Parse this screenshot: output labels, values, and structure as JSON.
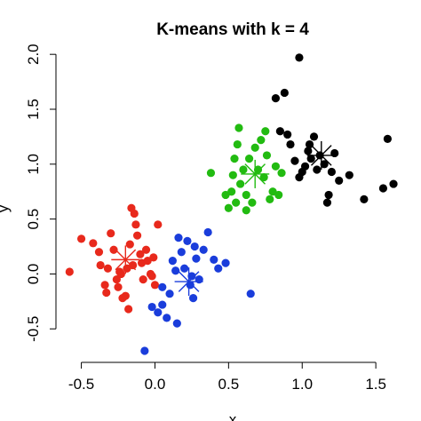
{
  "chart_data": {
    "type": "scatter",
    "title": "K-means with k = 4",
    "xlabel": "x",
    "ylabel": "y",
    "xlim": [
      -0.6,
      1.65
    ],
    "ylim": [
      -0.7,
      2.05
    ],
    "xticks": [
      -0.5,
      0.0,
      0.5,
      1.0,
      1.5
    ],
    "xtick_labels": [
      "-0.5",
      "0.0",
      "0.5",
      "1.0",
      "1.5"
    ],
    "yticks": [
      -0.5,
      0.0,
      0.5,
      1.0,
      1.5,
      2.0
    ],
    "ytick_labels": [
      "-0.5",
      "0.0",
      "0.5",
      "1.0",
      "1.5",
      "2.0"
    ],
    "grid": false,
    "legend": "none",
    "series": [
      {
        "color": "#e8291c",
        "centroid": [
          -0.2,
          0.13
        ],
        "points": [
          [
            -0.58,
            0.02
          ],
          [
            -0.5,
            0.32
          ],
          [
            -0.42,
            0.28
          ],
          [
            -0.38,
            0.2
          ],
          [
            -0.37,
            0.08
          ],
          [
            -0.34,
            -0.1
          ],
          [
            -0.33,
            -0.17
          ],
          [
            -0.32,
            0.05
          ],
          [
            -0.3,
            0.37
          ],
          [
            -0.28,
            0.22
          ],
          [
            -0.26,
            -0.05
          ],
          [
            -0.25,
            -0.12
          ],
          [
            -0.24,
            0.02
          ],
          [
            -0.23,
            0.0
          ],
          [
            -0.22,
            -0.22
          ],
          [
            -0.2,
            -0.2
          ],
          [
            -0.19,
            0.05
          ],
          [
            -0.18,
            -0.32
          ],
          [
            -0.17,
            0.27
          ],
          [
            -0.15,
            0.08
          ],
          [
            -0.14,
            0.55
          ],
          [
            -0.13,
            0.45
          ],
          [
            -0.12,
            0.35
          ],
          [
            -0.1,
            0.18
          ],
          [
            -0.09,
            0.1
          ],
          [
            -0.08,
            -0.05
          ],
          [
            -0.06,
            0.22
          ],
          [
            -0.05,
            0.12
          ],
          [
            -0.03,
            0.0
          ],
          [
            -0.02,
            -0.02
          ],
          [
            -0.01,
            0.15
          ],
          [
            0.0,
            -0.1
          ],
          [
            0.02,
            0.45
          ],
          [
            -0.16,
            0.6
          ]
        ]
      },
      {
        "color": "#1a3ddb",
        "centroid": [
          0.23,
          -0.07
        ],
        "points": [
          [
            -0.07,
            -0.7
          ],
          [
            -0.02,
            -0.3
          ],
          [
            0.02,
            -0.35
          ],
          [
            0.05,
            -0.12
          ],
          [
            0.05,
            -0.28
          ],
          [
            0.08,
            -0.4
          ],
          [
            0.1,
            -0.18
          ],
          [
            0.12,
            0.12
          ],
          [
            0.14,
            0.03
          ],
          [
            0.15,
            -0.45
          ],
          [
            0.16,
            0.33
          ],
          [
            0.18,
            0.2
          ],
          [
            0.2,
            0.05
          ],
          [
            0.22,
            0.3
          ],
          [
            0.24,
            -0.1
          ],
          [
            0.25,
            -0.02
          ],
          [
            0.27,
            0.25
          ],
          [
            0.28,
            0.14
          ],
          [
            0.3,
            -0.05
          ],
          [
            0.33,
            0.22
          ],
          [
            0.36,
            0.38
          ],
          [
            0.4,
            0.13
          ],
          [
            0.43,
            0.05
          ],
          [
            0.48,
            0.1
          ],
          [
            0.26,
            -0.22
          ],
          [
            0.65,
            -0.18
          ]
        ]
      },
      {
        "color": "#22bb11",
        "centroid": [
          0.68,
          0.91
        ],
        "points": [
          [
            0.38,
            0.92
          ],
          [
            0.48,
            0.72
          ],
          [
            0.5,
            0.6
          ],
          [
            0.52,
            0.75
          ],
          [
            0.53,
            0.9
          ],
          [
            0.54,
            1.05
          ],
          [
            0.55,
            0.65
          ],
          [
            0.56,
            1.18
          ],
          [
            0.57,
            1.33
          ],
          [
            0.58,
            0.82
          ],
          [
            0.6,
            0.95
          ],
          [
            0.62,
            0.72
          ],
          [
            0.64,
            1.05
          ],
          [
            0.66,
            0.65
          ],
          [
            0.68,
            1.15
          ],
          [
            0.7,
            0.95
          ],
          [
            0.72,
            1.22
          ],
          [
            0.74,
            0.88
          ],
          [
            0.76,
            1.08
          ],
          [
            0.78,
            0.68
          ],
          [
            0.8,
            0.75
          ],
          [
            0.82,
            0.98
          ],
          [
            0.84,
            0.72
          ],
          [
            0.86,
            0.92
          ],
          [
            0.75,
            1.3
          ],
          [
            0.62,
            0.58
          ]
        ]
      },
      {
        "color": "#000000",
        "centroid": [
          1.13,
          1.08
        ],
        "points": [
          [
            0.82,
            1.6
          ],
          [
            0.85,
            1.3
          ],
          [
            0.9,
            1.27
          ],
          [
            0.92,
            1.18
          ],
          [
            0.95,
            1.03
          ],
          [
            0.98,
            1.97
          ],
          [
            0.98,
            0.88
          ],
          [
            1.0,
            0.93
          ],
          [
            1.02,
            0.98
          ],
          [
            1.04,
            1.12
          ],
          [
            1.05,
            1.18
          ],
          [
            1.06,
            1.05
          ],
          [
            1.08,
            1.25
          ],
          [
            1.1,
            0.95
          ],
          [
            1.12,
            1.08
          ],
          [
            1.15,
            1.0
          ],
          [
            1.17,
            0.65
          ],
          [
            1.18,
            0.72
          ],
          [
            1.2,
            0.93
          ],
          [
            1.22,
            1.1
          ],
          [
            1.25,
            0.85
          ],
          [
            1.32,
            0.9
          ],
          [
            1.42,
            0.68
          ],
          [
            1.55,
            0.78
          ],
          [
            1.58,
            1.23
          ],
          [
            1.62,
            0.82
          ],
          [
            0.88,
            1.65
          ]
        ]
      }
    ]
  }
}
